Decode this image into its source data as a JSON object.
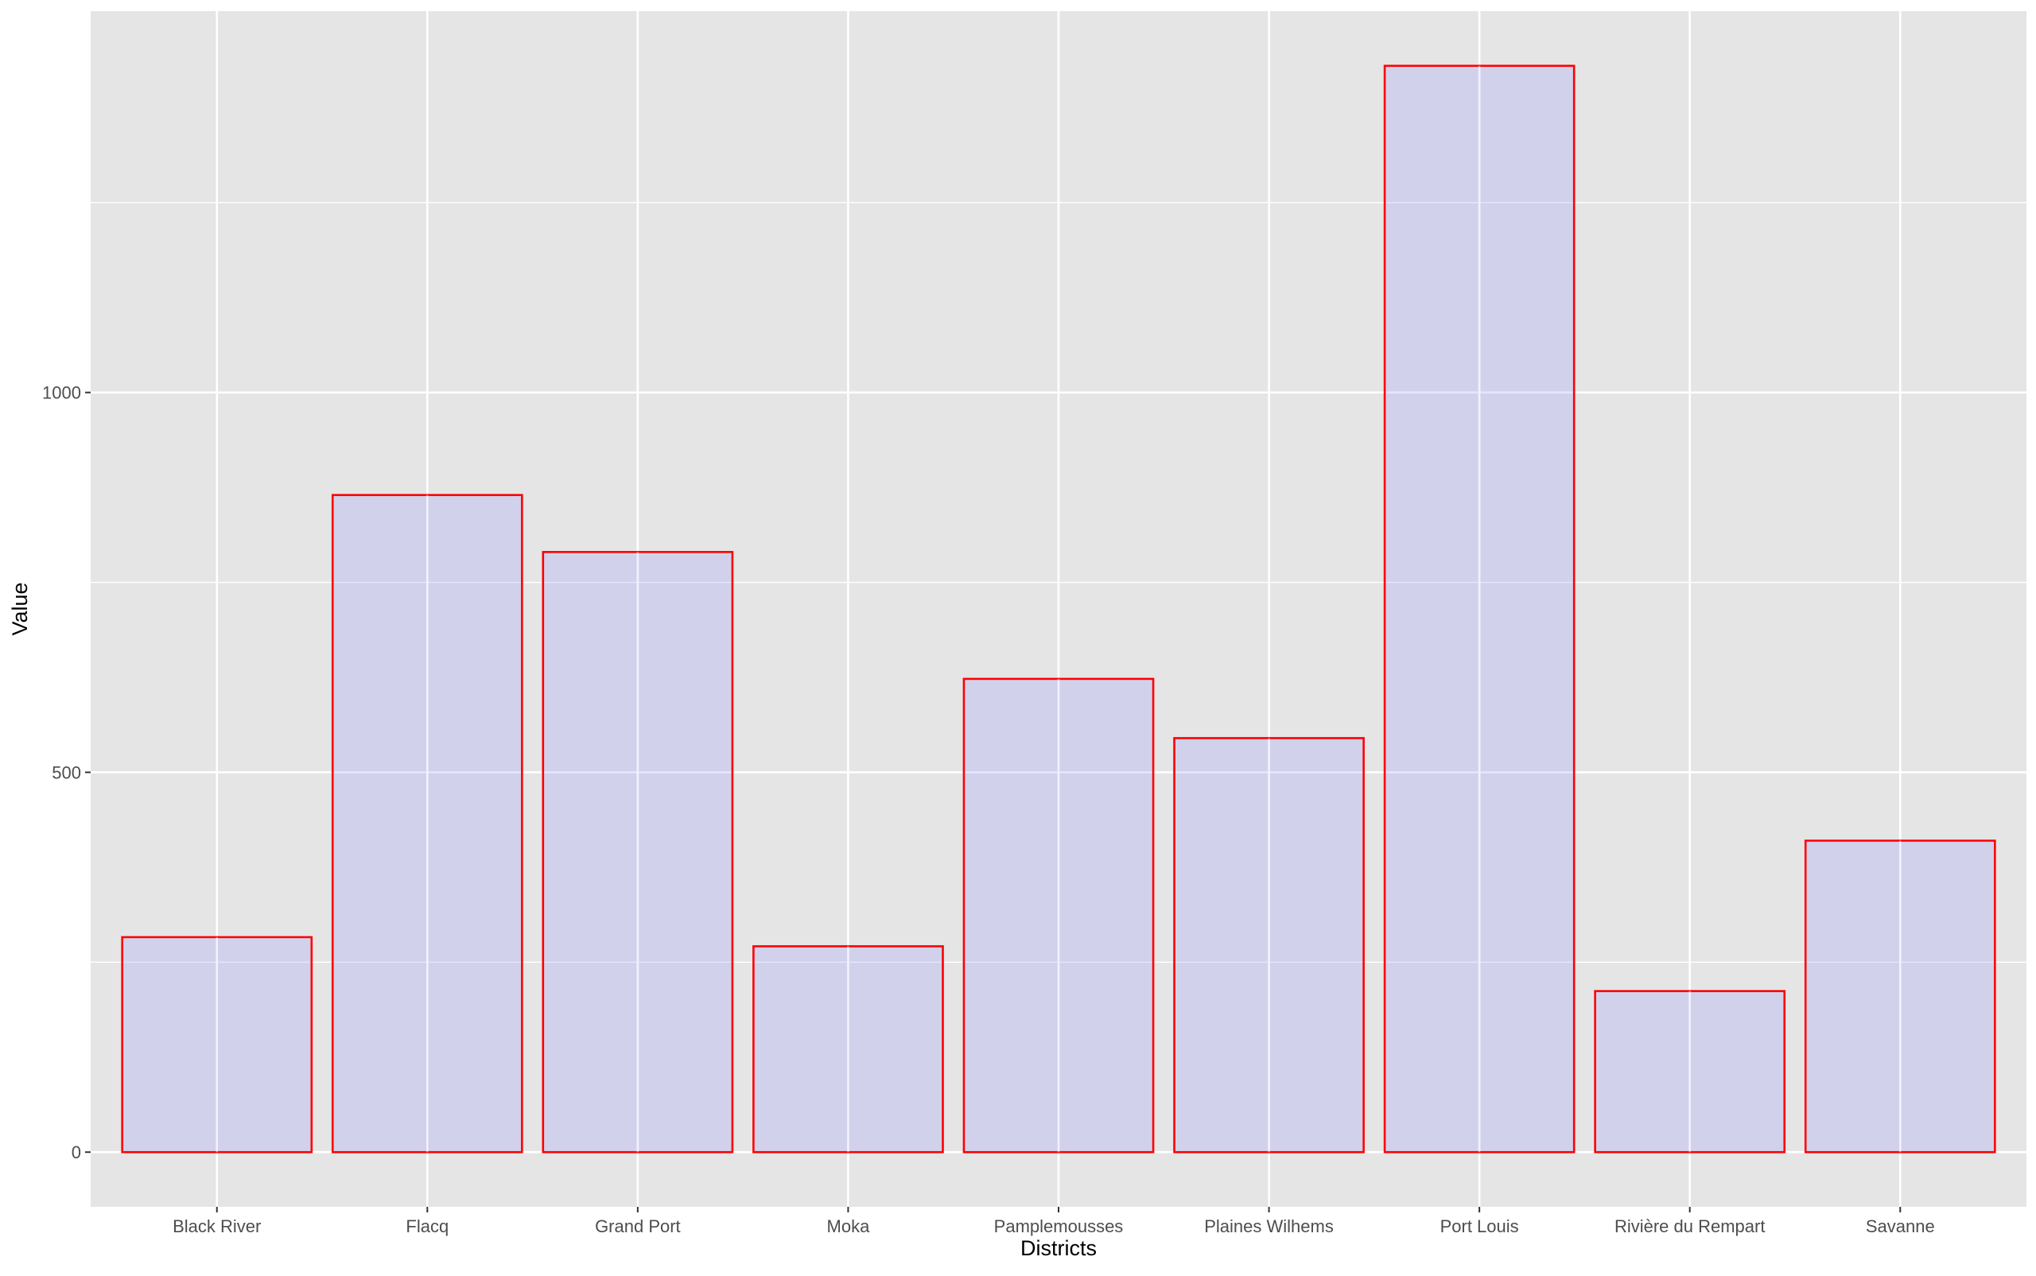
{
  "chart_data": {
    "type": "bar",
    "title": "",
    "xlabel": "Districts",
    "ylabel": "Value",
    "categories": [
      "Black River",
      "Flacq",
      "Grand Port",
      "Moka",
      "Pamplemousses",
      "Plaines Wilhems",
      "Port Louis",
      "Rivière du Rempart",
      "Savanne"
    ],
    "values": [
      283,
      865,
      790,
      271,
      623,
      545,
      1430,
      212,
      410
    ],
    "ylim": [
      -72,
      1502
    ],
    "yticks": [
      0,
      500,
      1000
    ],
    "yticks_labels": [
      "0",
      "500",
      "1000"
    ],
    "grid": true,
    "legend": "none",
    "colors": {
      "panel_background": "#e5e5e5",
      "grid_line": "#ffffff",
      "bar_fill": "#ccccf2",
      "bar_outline": "#ff0000",
      "tick_text": "#4d4d4d",
      "axis_title": "#000000"
    }
  }
}
